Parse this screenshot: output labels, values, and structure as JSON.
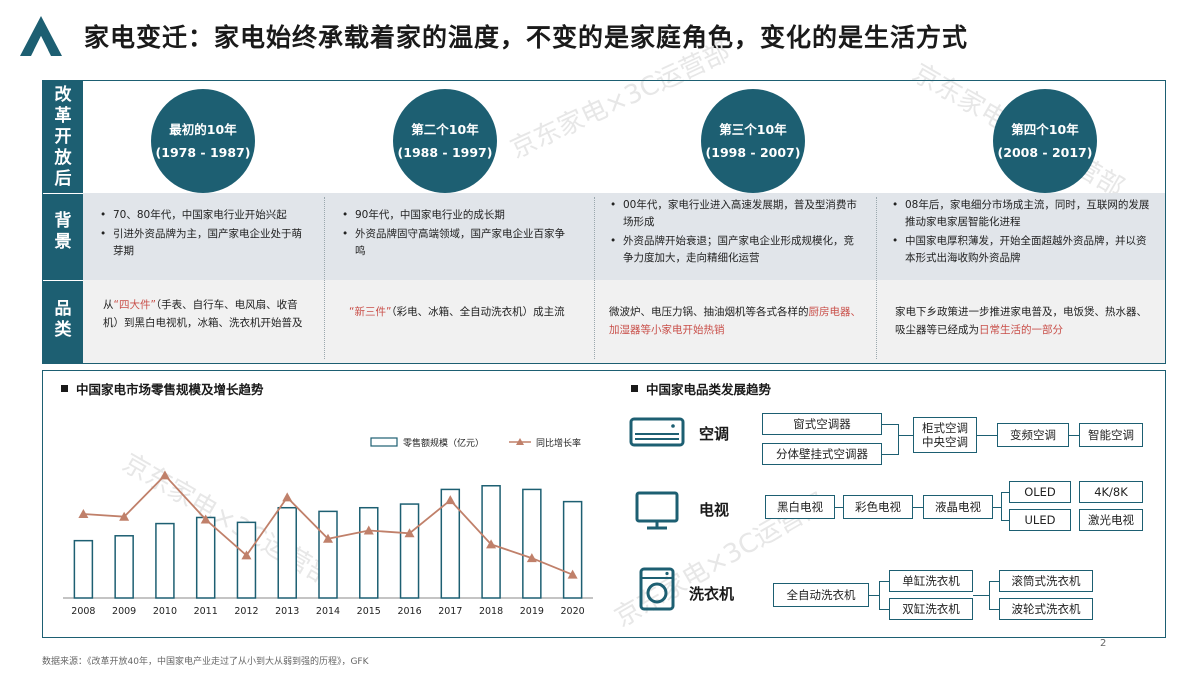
{
  "header": {
    "title": "家电变迁：家电始终承载着家的温度，不变的是家庭角色，变化的是生活方式"
  },
  "side_labels": {
    "era": "改革开放后",
    "background": "背景",
    "category": "品类"
  },
  "eras": [
    {
      "name": "最初的10年",
      "years": "(1978 - 1987)"
    },
    {
      "name": "第二个10年",
      "years": "(1988 - 1997)"
    },
    {
      "name": "第三个10年",
      "years": "(1998 - 2007)"
    },
    {
      "name": "第四个10年",
      "years": "(2008 - 2017)"
    }
  ],
  "backgrounds": [
    [
      "70、80年代，中国家电行业开始兴起",
      "引进外资品牌为主，国产家电企业处于萌芽期"
    ],
    [
      "90年代，中国家电行业的成长期",
      "外资品牌固守高端领域，国产家电企业百家争鸣"
    ],
    [
      "00年代，家电行业进入高速发展期，普及型消费市场形成",
      "外资品牌开始衰退；国产家电企业形成规模化，竞争力度加大，走向精细化运营"
    ],
    [
      "08年后，家电细分市场成主流，同时，互联网的发展推动家电家居智能化进程",
      "中国家电厚积薄发，开始全面超越外资品牌，并以资本形式出海收购外资品牌"
    ]
  ],
  "categories_text": [
    {
      "pre": "从",
      "hl1": "“四大件”",
      "mid": "（手表、自行车、电风扇、收音机）到黑白电视机，冰箱、洗衣机开始普及",
      "hl2": "",
      "post": ""
    },
    {
      "pre": "",
      "hl1": "“新三件”",
      "mid": "（彩电、冰箱、全自动洗衣机）成主流",
      "hl2": "",
      "post": ""
    },
    {
      "pre": "",
      "hl1": "",
      "mid": "微波炉、电压力锅、抽油烟机等各式各样的",
      "hl2": "厨房电器、加湿器等小家电开始热销",
      "post": ""
    },
    {
      "pre": "",
      "hl1": "",
      "mid": "家电下乡政策进一步推进家电普及，电饭煲、热水器、吸尘器等已经成为",
      "hl2": "日常生活的一部分",
      "post": ""
    }
  ],
  "chart_section": {
    "title": "中国家电市场零售规模及增长趋势"
  },
  "chart_data": {
    "type": "bar",
    "categories": [
      "2008",
      "2009",
      "2010",
      "2011",
      "2012",
      "2013",
      "2014",
      "2015",
      "2016",
      "2017",
      "2018",
      "2019",
      "2020"
    ],
    "series": [
      {
        "name": "零售额规模（亿元）",
        "type": "bar",
        "values": [
          4700,
          5100,
          6100,
          6600,
          6200,
          7400,
          7100,
          7400,
          7700,
          8900,
          9200,
          8900,
          7900
        ]
      },
      {
        "name": "同比增长率",
        "type": "line",
        "values": [
          0.14,
          0.13,
          0.28,
          0.12,
          -0.01,
          0.2,
          0.05,
          0.08,
          0.07,
          0.19,
          0.03,
          -0.02,
          -0.08
        ]
      }
    ],
    "colors": {
      "bar": "#1d5f72",
      "line": "#c0806a"
    }
  },
  "trend_section": {
    "title": "中国家电品类发展趋势",
    "ac": {
      "label": "空调",
      "nodes": [
        "窗式空调器",
        "分体壁挂式空调器",
        "柜式空调\n中央空调",
        "变频空调",
        "智能空调"
      ]
    },
    "tv": {
      "label": "电视",
      "nodes": [
        "黑白电视",
        "彩色电视",
        "液晶电视",
        "OLED",
        "ULED",
        "4K/8K",
        "激光电视"
      ]
    },
    "washer": {
      "label": "洗衣机",
      "nodes": [
        "全自动洗衣机",
        "单缸洗衣机",
        "双缸洗衣机",
        "滚筒式洗衣机",
        "波轮式洗衣机"
      ]
    }
  },
  "footer": {
    "source": "数据来源：《改革开放40年，中国家电产业走过了从小到大从弱到强的历程》，GFK",
    "page": "2"
  },
  "watermark": "京东家电×3C运营部",
  "theme": {
    "primary": "#1d5f72",
    "highlight": "#c9504a",
    "band": "#e1e5ea"
  }
}
